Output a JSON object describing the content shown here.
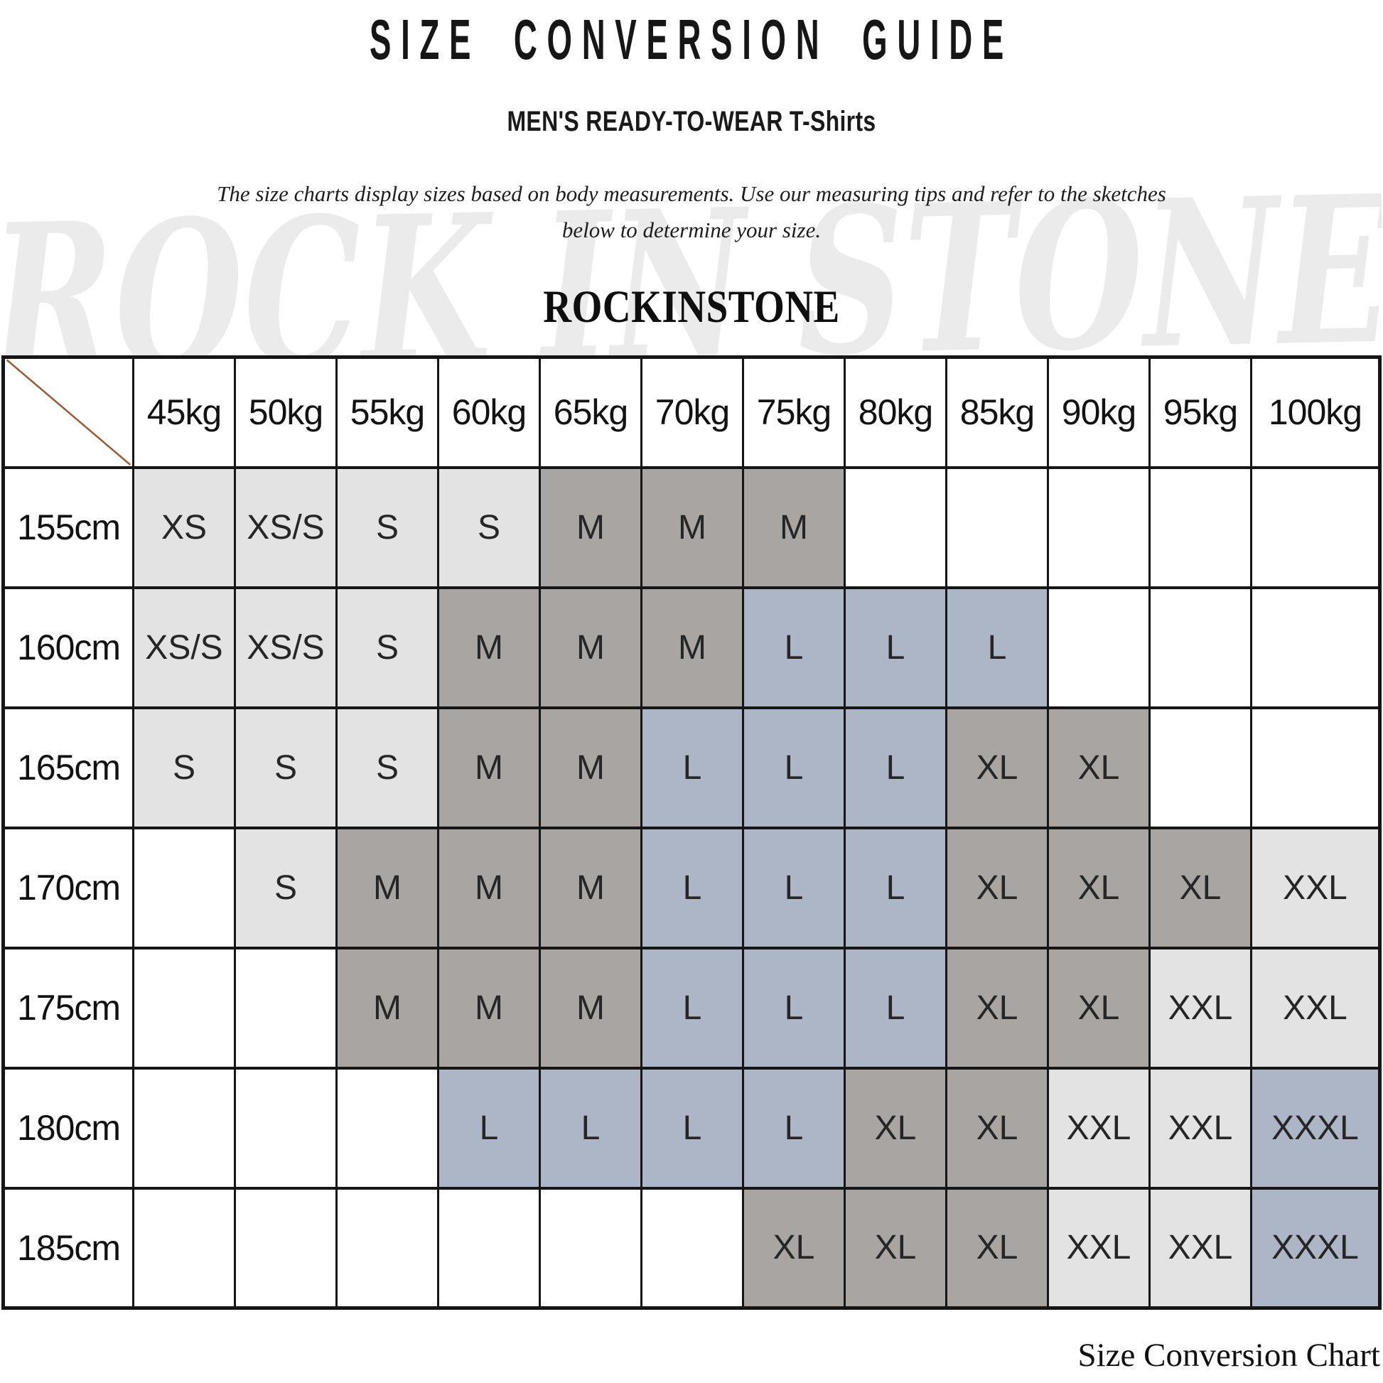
{
  "header": {
    "title": "SIZE CONVERSION GUIDE",
    "subtitle": "MEN'S READY-TO-WEAR T-Shirts",
    "description_line1": "The size charts display sizes based on body measurements. Use our measuring tips and refer to the sketches",
    "description_line2": "below to determine your size.",
    "brand": "ROCKINSTONE",
    "watermark": "ROCK IN STONE"
  },
  "chart_data": {
    "type": "table",
    "title": "SIZE CONVERSION GUIDE",
    "columns": [
      "45kg",
      "50kg",
      "55kg",
      "60kg",
      "65kg",
      "70kg",
      "75kg",
      "80kg",
      "85kg",
      "90kg",
      "95kg",
      "100kg"
    ],
    "rows": [
      {
        "height": "155cm",
        "cells": [
          {
            "size": "XS",
            "tone": "light"
          },
          {
            "size": "XS/S",
            "tone": "light"
          },
          {
            "size": "S",
            "tone": "light"
          },
          {
            "size": "S",
            "tone": "light"
          },
          {
            "size": "M",
            "tone": "gray"
          },
          {
            "size": "M",
            "tone": "gray"
          },
          {
            "size": "M",
            "tone": "gray"
          },
          {
            "size": "",
            "tone": "none"
          },
          {
            "size": "",
            "tone": "none"
          },
          {
            "size": "",
            "tone": "none"
          },
          {
            "size": "",
            "tone": "none"
          },
          {
            "size": "",
            "tone": "none"
          }
        ]
      },
      {
        "height": "160cm",
        "cells": [
          {
            "size": "XS/S",
            "tone": "light"
          },
          {
            "size": "XS/S",
            "tone": "light"
          },
          {
            "size": "S",
            "tone": "light"
          },
          {
            "size": "M",
            "tone": "gray"
          },
          {
            "size": "M",
            "tone": "gray"
          },
          {
            "size": "M",
            "tone": "gray"
          },
          {
            "size": "L",
            "tone": "blue"
          },
          {
            "size": "L",
            "tone": "blue"
          },
          {
            "size": "L",
            "tone": "blue"
          },
          {
            "size": "",
            "tone": "none"
          },
          {
            "size": "",
            "tone": "none"
          },
          {
            "size": "",
            "tone": "none"
          }
        ]
      },
      {
        "height": "165cm",
        "cells": [
          {
            "size": "S",
            "tone": "light"
          },
          {
            "size": "S",
            "tone": "light"
          },
          {
            "size": "S",
            "tone": "light"
          },
          {
            "size": "M",
            "tone": "gray"
          },
          {
            "size": "M",
            "tone": "gray"
          },
          {
            "size": "L",
            "tone": "blue"
          },
          {
            "size": "L",
            "tone": "blue"
          },
          {
            "size": "L",
            "tone": "blue"
          },
          {
            "size": "XL",
            "tone": "gray"
          },
          {
            "size": "XL",
            "tone": "gray"
          },
          {
            "size": "",
            "tone": "none"
          },
          {
            "size": "",
            "tone": "none"
          }
        ]
      },
      {
        "height": "170cm",
        "cells": [
          {
            "size": "",
            "tone": "none"
          },
          {
            "size": "S",
            "tone": "light"
          },
          {
            "size": "M",
            "tone": "gray"
          },
          {
            "size": "M",
            "tone": "gray"
          },
          {
            "size": "M",
            "tone": "gray"
          },
          {
            "size": "L",
            "tone": "blue"
          },
          {
            "size": "L",
            "tone": "blue"
          },
          {
            "size": "L",
            "tone": "blue"
          },
          {
            "size": "XL",
            "tone": "gray"
          },
          {
            "size": "XL",
            "tone": "gray"
          },
          {
            "size": "XL",
            "tone": "gray"
          },
          {
            "size": "XXL",
            "tone": "light"
          }
        ]
      },
      {
        "height": "175cm",
        "cells": [
          {
            "size": "",
            "tone": "none"
          },
          {
            "size": "",
            "tone": "none"
          },
          {
            "size": "M",
            "tone": "gray"
          },
          {
            "size": "M",
            "tone": "gray"
          },
          {
            "size": "M",
            "tone": "gray"
          },
          {
            "size": "L",
            "tone": "blue"
          },
          {
            "size": "L",
            "tone": "blue"
          },
          {
            "size": "L",
            "tone": "blue"
          },
          {
            "size": "XL",
            "tone": "gray"
          },
          {
            "size": "XL",
            "tone": "gray"
          },
          {
            "size": "XXL",
            "tone": "light"
          },
          {
            "size": "XXL",
            "tone": "light"
          }
        ]
      },
      {
        "height": "180cm",
        "cells": [
          {
            "size": "",
            "tone": "none"
          },
          {
            "size": "",
            "tone": "none"
          },
          {
            "size": "",
            "tone": "none"
          },
          {
            "size": "L",
            "tone": "blue"
          },
          {
            "size": "L",
            "tone": "blue"
          },
          {
            "size": "L",
            "tone": "blue"
          },
          {
            "size": "L",
            "tone": "blue"
          },
          {
            "size": "XL",
            "tone": "gray"
          },
          {
            "size": "XL",
            "tone": "gray"
          },
          {
            "size": "XXL",
            "tone": "light"
          },
          {
            "size": "XXL",
            "tone": "light"
          },
          {
            "size": "XXXL",
            "tone": "blue"
          }
        ]
      },
      {
        "height": "185cm",
        "cells": [
          {
            "size": "",
            "tone": "none"
          },
          {
            "size": "",
            "tone": "none"
          },
          {
            "size": "",
            "tone": "none"
          },
          {
            "size": "",
            "tone": "none"
          },
          {
            "size": "",
            "tone": "none"
          },
          {
            "size": "",
            "tone": "none"
          },
          {
            "size": "XL",
            "tone": "gray"
          },
          {
            "size": "XL",
            "tone": "gray"
          },
          {
            "size": "XL",
            "tone": "gray"
          },
          {
            "size": "XXL",
            "tone": "light"
          },
          {
            "size": "XXL",
            "tone": "light"
          },
          {
            "size": "XXXL",
            "tone": "blue"
          }
        ]
      }
    ],
    "legend": "cell tones group sizes: light=XS/S/XXL, gray=M/XL, blue=L/XXXL"
  },
  "footer": {
    "caption": "Size Conversion Chart"
  },
  "colors": {
    "cell_light": "#e3e3e3",
    "cell_gray": "#a9a5a3",
    "cell_blue": "#acb6c7",
    "diagonal_line": "#9a5a36",
    "table_border": "#161616",
    "watermark_gray": "#ebebeb"
  }
}
